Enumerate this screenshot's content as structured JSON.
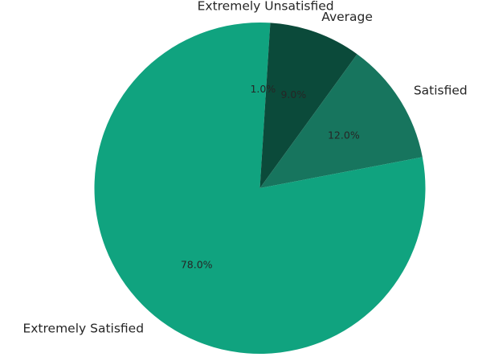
{
  "chart_data": {
    "type": "pie",
    "title": "",
    "slices": [
      {
        "label": "Extremely Unsatisfied",
        "value": 1.0,
        "pct_text": "1.0%",
        "color": "#10a37f"
      },
      {
        "label": "Average",
        "value": 9.0,
        "pct_text": "9.0%",
        "color": "#0b4a3a"
      },
      {
        "label": "Satisfied",
        "value": 12.0,
        "pct_text": "12.0%",
        "color": "#17755e"
      },
      {
        "label": "Extremely Satisfied",
        "value": 78.0,
        "pct_text": "78.0%",
        "color": "#10a37f"
      }
    ],
    "start_angle_deg": 90,
    "direction": "clockwise",
    "legend": "none"
  }
}
